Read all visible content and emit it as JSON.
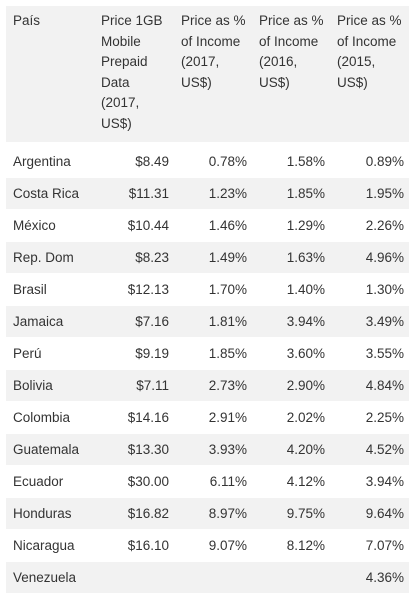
{
  "table": {
    "headers": {
      "country": "País",
      "price": "Price 1GB Mobile Prepaid Data (2017, US$)",
      "p2017": "Price as % of Income (2017, US$)",
      "p2016": "Price as % of Income (2016, US$)",
      "p2015": "Price as % of Income (2015, US$)"
    },
    "rows": [
      {
        "country": "Argentina",
        "price": "$8.49",
        "p2017": "0.78%",
        "p2016": "1.58%",
        "p2015": "0.89%"
      },
      {
        "country": "Costa Rica",
        "price": "$11.31",
        "p2017": "1.23%",
        "p2016": "1.85%",
        "p2015": "1.95%"
      },
      {
        "country": "México",
        "price": "$10.44",
        "p2017": "1.46%",
        "p2016": "1.29%",
        "p2015": "2.26%"
      },
      {
        "country": "Rep. Dom",
        "price": "$8.23",
        "p2017": "1.49%",
        "p2016": "1.63%",
        "p2015": "4.96%"
      },
      {
        "country": "Brasil",
        "price": "$12.13",
        "p2017": "1.70%",
        "p2016": "1.40%",
        "p2015": "1.30%"
      },
      {
        "country": "Jamaica",
        "price": "$7.16",
        "p2017": "1.81%",
        "p2016": "3.94%",
        "p2015": "3.49%"
      },
      {
        "country": "Perú",
        "price": "$9.19",
        "p2017": "1.85%",
        "p2016": "3.60%",
        "p2015": "3.55%"
      },
      {
        "country": "Bolivia",
        "price": "$7.11",
        "p2017": "2.73%",
        "p2016": "2.90%",
        "p2015": "4.84%"
      },
      {
        "country": "Colombia",
        "price": "$14.16",
        "p2017": "2.91%",
        "p2016": "2.02%",
        "p2015": "2.25%"
      },
      {
        "country": "Guatemala",
        "price": "$13.30",
        "p2017": "3.93%",
        "p2016": "4.20%",
        "p2015": "4.52%"
      },
      {
        "country": "Ecuador",
        "price": "$30.00",
        "p2017": "6.11%",
        "p2016": "4.12%",
        "p2015": "3.94%"
      },
      {
        "country": "Honduras",
        "price": "$16.82",
        "p2017": "8.97%",
        "p2016": "9.75%",
        "p2015": "9.64%"
      },
      {
        "country": "Nicaragua",
        "price": "$16.10",
        "p2017": "9.07%",
        "p2016": "8.12%",
        "p2015": "7.07%"
      },
      {
        "country": "Venezuela",
        "price": "",
        "p2017": "",
        "p2016": "",
        "p2015": "4.36%"
      }
    ]
  }
}
